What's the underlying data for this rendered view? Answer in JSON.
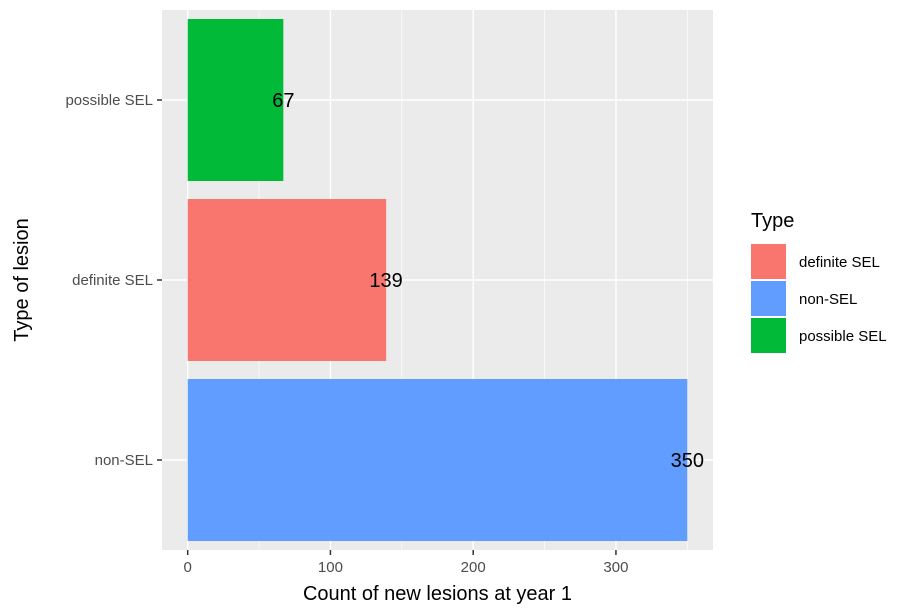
{
  "chart_data": {
    "type": "bar",
    "orientation": "horizontal",
    "categories": [
      "possible SEL",
      "definite SEL",
      "non-SEL"
    ],
    "values": [
      67,
      139,
      350
    ],
    "colors": [
      "#00BA38",
      "#F8766D",
      "#619CFF"
    ],
    "xlabel": "Count of new lesions at year 1",
    "ylabel": "Type of lesion",
    "xlim": [
      -18,
      368
    ],
    "xticks": [
      0,
      100,
      200,
      300
    ],
    "xtick_labels": [
      "0",
      "100",
      "200",
      "300"
    ],
    "data_labels": [
      "67",
      "139",
      "350"
    ],
    "grid": true,
    "panel_background": "#EBEBEB",
    "legend": {
      "title": "Type",
      "position": "right",
      "entries": [
        {
          "label": "definite SEL",
          "color": "#F8766D"
        },
        {
          "label": "non-SEL",
          "color": "#619CFF"
        },
        {
          "label": "possible SEL",
          "color": "#00BA38"
        }
      ]
    }
  }
}
